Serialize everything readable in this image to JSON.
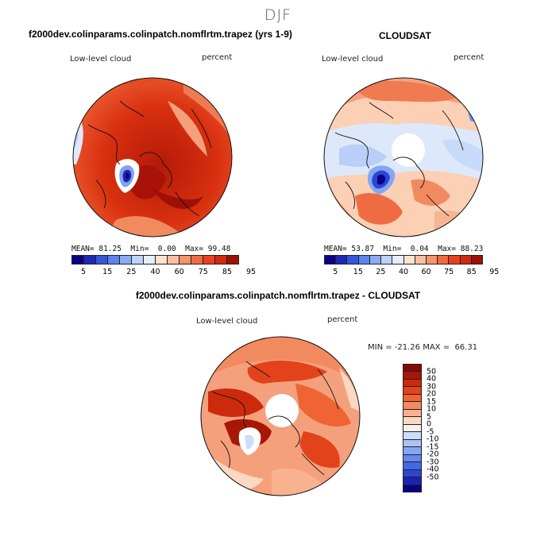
{
  "season": "DJF",
  "panel_left": {
    "title": "f2000dev.colinparams.colinpatch.nomflrtm.trapez (yrs 1-9)",
    "variable": "Low-level cloud",
    "units": "percent",
    "mean_label": "MEAN=",
    "mean": "81.25",
    "min_label": "Min=",
    "min": "0.00",
    "max_label": "Max=",
    "max": "99.48"
  },
  "panel_right": {
    "title": "CLOUDSAT",
    "variable": "Low-level cloud",
    "units": "percent",
    "mean_label": "MEAN=",
    "mean": "53.87",
    "min_label": "Min=",
    "min": "0.04",
    "max_label": "Max=",
    "max": "88.23"
  },
  "panel_diff": {
    "title": "f2000dev.colinparams.colinpatch.nomflrtm.trapez - CLOUDSAT",
    "variable": "Low-level cloud",
    "units": "percent",
    "range_text": "MIN = -21.26 MAX =  66.31"
  },
  "abs_colorbar": {
    "colors": [
      "#0b0087",
      "#1e27b8",
      "#3456dc",
      "#5a84ee",
      "#89acf5",
      "#bcd3fa",
      "#e6eefc",
      "#fde2d0",
      "#fbbfa0",
      "#f8936c",
      "#f26a40",
      "#e8411f",
      "#d12a0d",
      "#9c1006"
    ],
    "labels": [
      "5",
      "15",
      "25",
      "40",
      "60",
      "75",
      "85",
      "95"
    ]
  },
  "diff_colorbar": {
    "colors": [
      "#0b0087",
      "#1a24b0",
      "#2a47d4",
      "#4268e6",
      "#6388ef",
      "#86a6f4",
      "#a9c3f8",
      "#cdddfb",
      "#f4f1ee",
      "#fcd8c2",
      "#f9b28f",
      "#f58a5e",
      "#ef6334",
      "#e3431b",
      "#cc2a0c",
      "#a81607",
      "#850a04"
    ],
    "labels": [
      "50",
      "40",
      "30",
      "20",
      "15",
      "10",
      "5",
      "0",
      "-5",
      "-10",
      "-15",
      "-20",
      "-30",
      "-40",
      "-50"
    ]
  }
}
